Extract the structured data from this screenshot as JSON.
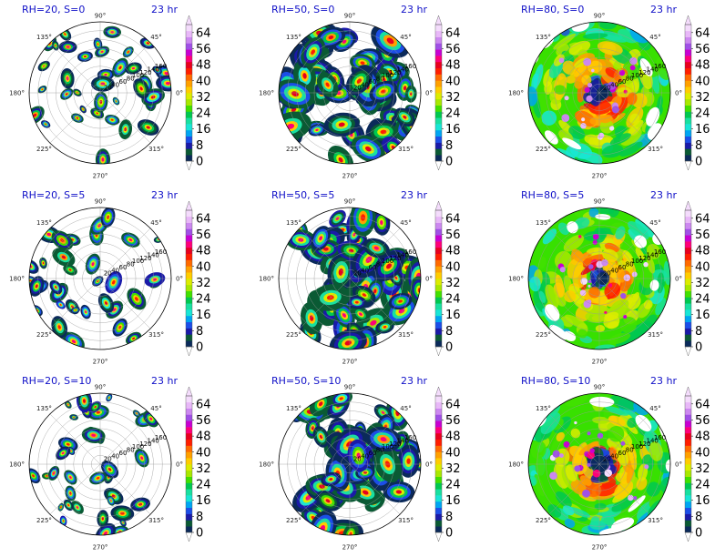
{
  "chart_data": {
    "type": "heatmap",
    "layout": {
      "rows": 3,
      "cols": 3
    },
    "colorbar": {
      "ticks": [
        "0",
        "8",
        "16",
        "24",
        "32",
        "40",
        "48",
        "56",
        "64"
      ],
      "range": [
        0,
        68
      ],
      "extend": "both",
      "colors": [
        "#0b2a5a",
        "#0a5a34",
        "#1a1aa8",
        "#1c4ee8",
        "#00a5f2",
        "#18e6d6",
        "#18e0a0",
        "#00c850",
        "#42e000",
        "#a8e800",
        "#dcec00",
        "#ffcc00",
        "#ffa000",
        "#ff6a00",
        "#ff1e00",
        "#e8001e",
        "#ff0078",
        "#c800d2",
        "#a050e6",
        "#cc88f0",
        "#e8b8f8",
        "#f4dcfc"
      ]
    },
    "angular_ticks": [
      "90°",
      "135°",
      "180°",
      "225°",
      "270°",
      "315°",
      "0°",
      "45°"
    ],
    "panels": [
      {
        "title": "RH=20, S=0",
        "time": "23 hr",
        "radial_ticks": [
          "20",
          "40",
          "60",
          "80",
          "100",
          "120",
          "140",
          "160"
        ],
        "fill": 0.3,
        "mode": "blobs"
      },
      {
        "title": "RH=50, S=0",
        "time": "23 hr",
        "radial_ticks": [
          "20",
          "40",
          "60",
          "80",
          "100",
          "120",
          "140",
          "160"
        ],
        "fill": 0.62,
        "mode": "bands"
      },
      {
        "title": "RH=80, S=0",
        "time": "23 hr",
        "radial_ticks": [
          "20",
          "40",
          "60",
          "80",
          "100",
          "120",
          "140",
          "160"
        ],
        "fill": 0.97,
        "mode": "vortex"
      },
      {
        "title": "RH=20, S=5",
        "time": "23 hr",
        "radial_ticks": [
          "20",
          "40",
          "60",
          "80",
          "100",
          "120",
          "140",
          "160"
        ],
        "fill": 0.3,
        "mode": "blobs"
      },
      {
        "title": "RH=50, S=5",
        "time": "23 hr",
        "radial_ticks": [
          "20",
          "40",
          "60",
          "80",
          "100",
          "120",
          "140",
          "160"
        ],
        "fill": 0.62,
        "mode": "bands"
      },
      {
        "title": "RH=80, S=5",
        "time": "23 hr",
        "radial_ticks": [
          "20",
          "40",
          "60",
          "80",
          "100",
          "120",
          "140",
          "160"
        ],
        "fill": 0.95,
        "mode": "vortex"
      },
      {
        "title": "RH=20, S=10",
        "time": "23 hr",
        "radial_ticks": [
          "20",
          "40",
          "60",
          "80",
          "100",
          "120",
          "140",
          "160"
        ],
        "fill": 0.28,
        "mode": "blobs"
      },
      {
        "title": "RH=50, S=10",
        "time": "23 hr",
        "radial_ticks": [
          "20",
          "40",
          "60",
          "80",
          "100",
          "120",
          "140",
          "160"
        ],
        "fill": 0.55,
        "mode": "bands"
      },
      {
        "title": "RH=80, S=10",
        "time": "23 hr",
        "radial_ticks": [
          "20",
          "40",
          "60",
          "80",
          "100",
          "120",
          "140",
          "160"
        ],
        "fill": 0.9,
        "mode": "vortex"
      }
    ]
  }
}
